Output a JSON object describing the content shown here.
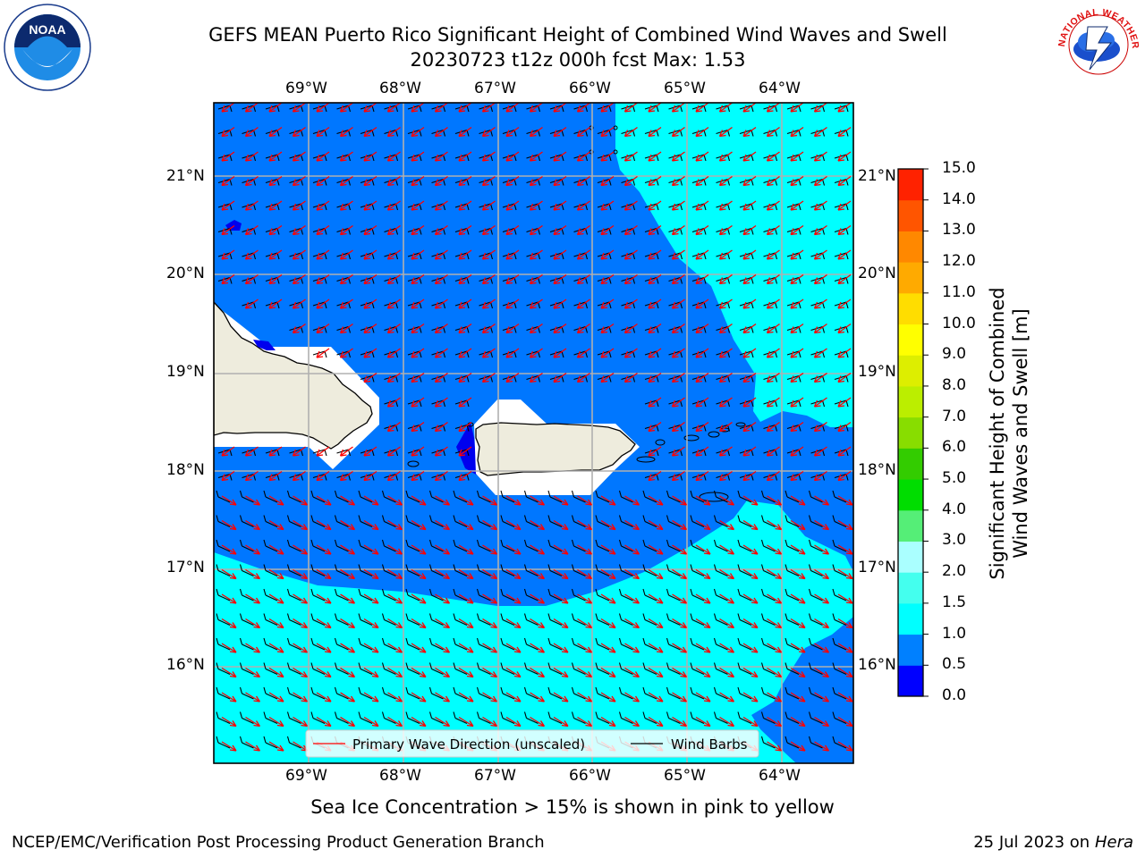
{
  "header": {
    "title_line1": "GEFS MEAN Puerto Rico Significant Height of Combined Wind Waves and Swell",
    "title_line2": "20230723 t12z 000h fcst   Max: 1.53"
  },
  "logos": {
    "noaa_text": "NOAA",
    "nws_text": "NATIONAL WEATHER SERVICE"
  },
  "map": {
    "lon_labels": [
      "69°W",
      "68°W",
      "67°W",
      "66°W",
      "65°W",
      "64°W"
    ],
    "lat_labels": [
      "21°N",
      "20°N",
      "19°N",
      "18°N",
      "17°N",
      "16°N"
    ],
    "legend": {
      "primary_wave_label": "Primary Wave Direction (unscaled)",
      "wind_barbs_label": "Wind Barbs"
    },
    "colors": {
      "land": "#eeecdd",
      "sea_05_10": "#0077ff",
      "sea_15_20": "#00ffff",
      "sea_00_05": "#0000ee",
      "wave_arrow": "#ff0000",
      "barb": "#000000"
    }
  },
  "colorbar": {
    "label_line1": "Significant Height of Combined",
    "label_line2": "Wind Waves and Swell [m]",
    "ticks": [
      "0.0",
      "0.5",
      "1.0",
      "1.5",
      "2.0",
      "3.0",
      "4.0",
      "5.0",
      "6.0",
      "7.0",
      "8.0",
      "9.0",
      "10.0",
      "11.0",
      "12.0",
      "13.0",
      "14.0",
      "15.0"
    ],
    "colors": [
      "#0000ff",
      "#0080ff",
      "#00ffff",
      "#44ffee",
      "#aaffff",
      "#55ee77",
      "#00dd00",
      "#33cc00",
      "#88dd00",
      "#bbee00",
      "#ddee00",
      "#ffff00",
      "#ffdd00",
      "#ffaa00",
      "#ff8800",
      "#ff5500",
      "#ff2200",
      "#ff0000"
    ]
  },
  "notes": {
    "sea_ice": "Sea Ice Concentration > 15% is shown in pink to yellow"
  },
  "footer": {
    "left": "NCEP/EMC/Verification Post Processing Product Generation Branch",
    "right_date": "25 Jul 2023 on ",
    "right_host": "Hera"
  }
}
